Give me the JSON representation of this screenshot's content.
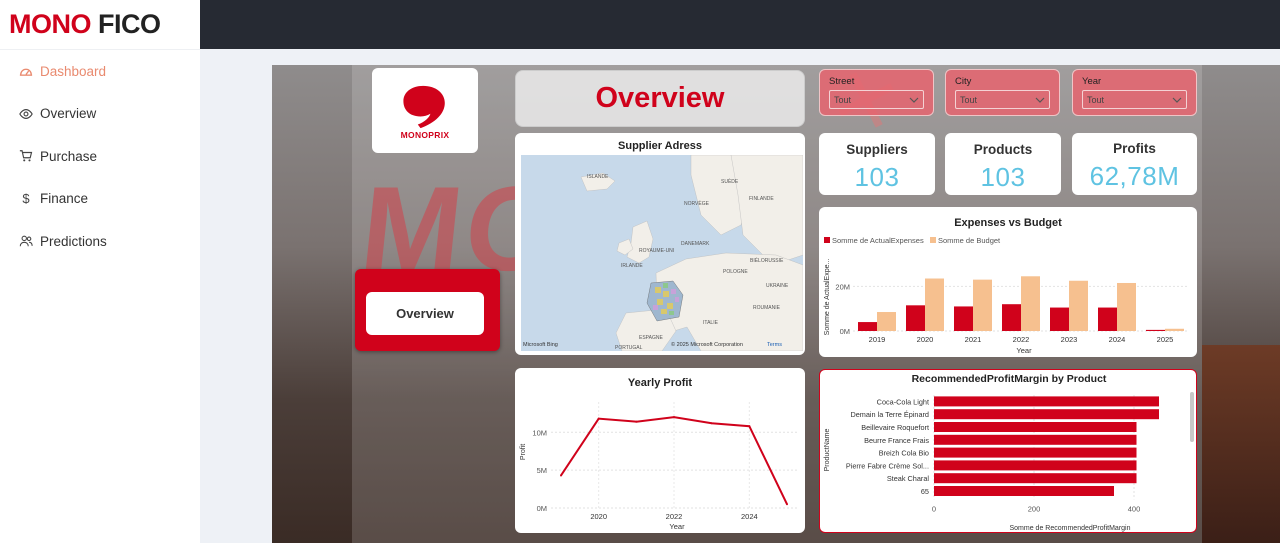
{
  "brand": {
    "part1": "MONO",
    "part2": "FICO"
  },
  "sidebar": {
    "items": [
      {
        "label": "Dashboard",
        "icon": "dashboard-icon",
        "active": true
      },
      {
        "label": "Overview",
        "icon": "eye-icon",
        "active": false
      },
      {
        "label": "Purchase",
        "icon": "cart-icon",
        "active": false
      },
      {
        "label": "Finance",
        "icon": "dollar-icon",
        "active": false
      },
      {
        "label": "Predictions",
        "icon": "users-icon",
        "active": false
      }
    ]
  },
  "report": {
    "logo_text": "MONOPRIX",
    "title": "Overview",
    "nav_button": "Overview",
    "colors": {
      "accent": "#d0021b",
      "kpi": "#5fc3e2",
      "budget": "#f6c08f"
    }
  },
  "filters": [
    {
      "label": "Street",
      "value": "Tout"
    },
    {
      "label": "City",
      "value": "Tout"
    },
    {
      "label": "Year",
      "value": "Tout"
    }
  ],
  "kpis": [
    {
      "title": "Suppliers",
      "value": "103"
    },
    {
      "title": "Products",
      "value": "103"
    },
    {
      "title": "Profits",
      "value": "62,78M"
    }
  ],
  "map": {
    "title": "Supplier Adress",
    "labels": [
      "ISLANDE",
      "SUÈDE",
      "NORVÈGE",
      "FINLANDE",
      "DANEMARK",
      "ROYAUME-UNI",
      "IRLANDE",
      "POLOGNE",
      "BIÉLORUSSIE",
      "UKRAINE",
      "ITALIE",
      "ROUMANIE",
      "ESPAGNE",
      "PORTUGAL"
    ],
    "footer_left": "Microsoft Bing",
    "footer_right": "© 2025 Microsoft Corporation",
    "terms": "Terms"
  },
  "chart_data": [
    {
      "type": "bar",
      "title": "Expenses vs Budget",
      "xlabel": "Year",
      "ylabel": "Somme de ActualExpe...",
      "categories": [
        "2019",
        "2020",
        "2021",
        "2022",
        "2023",
        "2024",
        "2025"
      ],
      "series": [
        {
          "name": "Somme de ActualExpenses",
          "values": [
            4,
            11.5,
            11,
            12,
            10.5,
            10.5,
            0.5
          ]
        },
        {
          "name": "Somme de Budget",
          "values": [
            8.5,
            23.5,
            23,
            24.5,
            22.5,
            21.5,
            1
          ]
        }
      ],
      "ytick_labels": [
        "0M",
        "20M"
      ],
      "yticks": [
        0,
        20
      ],
      "ylim": [
        0,
        30
      ],
      "legend": "top-left",
      "grid": true
    },
    {
      "type": "line",
      "title": "Yearly Profit",
      "xlabel": "Year",
      "ylabel": "Profit",
      "x": [
        2019,
        2020,
        2021,
        2022,
        2023,
        2024,
        2025
      ],
      "series": [
        {
          "values": [
            4.3,
            11.8,
            11.4,
            12,
            11.2,
            10.8,
            0.5
          ]
        }
      ],
      "xticks": [
        2020,
        2022,
        2024
      ],
      "ytick_labels": [
        "0M",
        "5M",
        "10M"
      ],
      "yticks": [
        0,
        5,
        10
      ],
      "ylim": [
        0,
        14
      ],
      "grid": true
    },
    {
      "type": "bar",
      "orientation": "horizontal",
      "title": "RecommendedProfitMargin by Product",
      "xlabel": "Somme de RecommendedProfitMargin",
      "ylabel": "ProductName",
      "categories": [
        "Coca-Cola Light",
        "Demain la Terre Épinard",
        "Beillevaire Roquefort",
        "Beurre France Frais",
        "Breizh Cola Bio",
        "Pierre Fabre Crème Sol...",
        "Steak Charal",
        "65"
      ],
      "values": [
        450,
        450,
        405,
        405,
        405,
        405,
        405,
        360
      ],
      "xticks": [
        0,
        200,
        400
      ],
      "xlim": [
        0,
        500
      ],
      "grid": true
    }
  ]
}
